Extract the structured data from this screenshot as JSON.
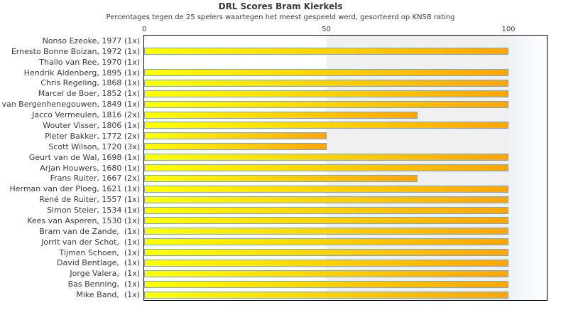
{
  "chart_data": {
    "type": "bar",
    "orientation": "horizontal",
    "title": "DRL Scores Bram Kierkels",
    "subtitle": "Percentages tegen de 25 spelers waartegen het meest gespeeld werd, gesorteerd op KNSB rating",
    "xlabel": "",
    "ylabel": "",
    "xlim": [
      0,
      110.5
    ],
    "x_ticks": [
      0,
      50,
      100
    ],
    "grid": false,
    "legend": "none",
    "shaded_band": {
      "from": 50,
      "to_right_edge": true,
      "color": "#f0f0f0"
    },
    "categories": [
      "Nonso Ezeoke, 1977 (1x)",
      "Ernesto Bonne Boizan, 1972 (1x)",
      "Thailo van Ree, 1970 (1x)",
      "Hendrik Aldenberg, 1895 (1x)",
      "Chris Regeling, 1868 (1x)",
      "Marcel de Boer, 1852 (1x)",
      "van Bergenhenegouwen, 1849 (1x)",
      "Jacco Vermeulen, 1816 (2x)",
      "Wouter Visser, 1806 (1x)",
      "Pieter Bakker, 1772 (2x)",
      "Scott Wilson, 1720 (3x)",
      "Geurt van de Wal, 1698 (1x)",
      "Arjan Houwers, 1680 (1x)",
      "Frans Ruiter, 1667 (2x)",
      "Herman van der Ploeg, 1621 (1x)",
      "René de Ruiter, 1557 (1x)",
      "Simon Steier, 1534 (1x)",
      "Kees van Asperen, 1530 (1x)",
      "Bram van de Zande,  (1x)",
      "Jorrit van der Schot,  (1x)",
      "Tijmen Schoen,  (1x)",
      "David Bentlage,  (1x)",
      "Jorge Valera,  (1x)",
      "Bas Benning,  (1x)",
      "Mike Band,  (1x)"
    ],
    "values": [
      0,
      100,
      0,
      100,
      100,
      100,
      100,
      75,
      100,
      50,
      50,
      100,
      100,
      75,
      100,
      100,
      100,
      100,
      100,
      100,
      100,
      100,
      100,
      100,
      100
    ],
    "bar_style": {
      "gradient_start": "#ffff00",
      "gradient_end": "#ffa506",
      "border": "#6ea7db"
    },
    "colors": {
      "plot_border": "#000000",
      "band_gray": "#f0f0f0",
      "right_strip_start": "#edf2f8",
      "right_strip_end": "#fdfeff",
      "text": "#3a3a3a"
    }
  }
}
